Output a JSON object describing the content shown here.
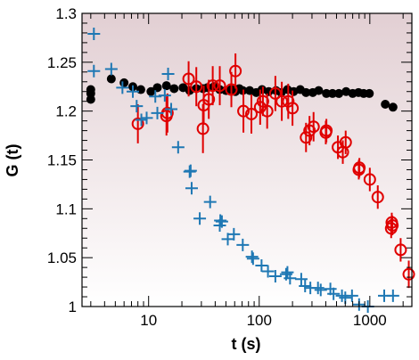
{
  "chart_data": {
    "type": "scatter",
    "title": "",
    "xlabel": "t (s)",
    "ylabel": "G (t)",
    "xscale": "log",
    "xlim": [
      2.5,
      2400
    ],
    "ylim": [
      1.0,
      1.3
    ],
    "xticks": [
      10,
      100,
      1000
    ],
    "xtick_labels": [
      "10",
      "100",
      "1000"
    ],
    "yticks": [
      1,
      1.05,
      1.1,
      1.15,
      1.2,
      1.25,
      1.3
    ],
    "ytick_labels": [
      "1",
      "1.05",
      "1.1",
      "1.15",
      "1.2",
      "1.25",
      "1.3"
    ],
    "grid": false,
    "legend": "none",
    "background": "gradient: white at bottom to pale rose (#e2cfd3) at top",
    "series": [
      {
        "marker": "filled-circle",
        "color": "#000000",
        "points": [
          [
            3.0,
            1.212
          ],
          [
            3.0,
            1.218
          ],
          [
            3.0,
            1.222
          ],
          [
            4.6,
            1.233
          ],
          [
            6.0,
            1.229
          ],
          [
            7.2,
            1.225
          ],
          [
            8.5,
            1.222
          ],
          [
            10.5,
            1.22
          ],
          [
            12.0,
            1.224
          ],
          [
            14.5,
            1.226
          ],
          [
            17.0,
            1.223
          ],
          [
            20.5,
            1.224
          ],
          [
            23.5,
            1.221
          ],
          [
            27.0,
            1.223
          ],
          [
            31.0,
            1.223
          ],
          [
            34.0,
            1.224
          ],
          [
            39.0,
            1.225
          ],
          [
            44.0,
            1.222
          ],
          [
            50.0,
            1.221
          ],
          [
            56.0,
            1.222
          ],
          [
            61.0,
            1.22
          ],
          [
            66.0,
            1.223
          ],
          [
            71.0,
            1.221
          ],
          [
            82.0,
            1.221
          ],
          [
            94.0,
            1.219
          ],
          [
            106.0,
            1.222
          ],
          [
            122.0,
            1.22
          ],
          [
            142.0,
            1.221
          ],
          [
            158.0,
            1.219
          ],
          [
            180.0,
            1.222
          ],
          [
            205.0,
            1.22
          ],
          [
            235.0,
            1.222
          ],
          [
            265.0,
            1.219
          ],
          [
            305.0,
            1.219
          ],
          [
            345.0,
            1.221
          ],
          [
            405.0,
            1.218
          ],
          [
            460.0,
            1.218
          ],
          [
            525.0,
            1.218
          ],
          [
            610.0,
            1.22
          ],
          [
            700.0,
            1.218
          ],
          [
            790.0,
            1.219
          ],
          [
            880.0,
            1.218
          ],
          [
            990.0,
            1.218
          ],
          [
            1380.0,
            1.207
          ],
          [
            1620.0,
            1.204
          ]
        ]
      },
      {
        "marker": "open-circle-errorbar",
        "color": "#e00000",
        "points": [
          [
            8.0,
            1.187,
            0.02
          ],
          [
            14.5,
            1.195,
            0.02
          ],
          [
            14.8,
            1.198,
            0.02
          ],
          [
            23.0,
            1.233,
            0.018
          ],
          [
            27.0,
            1.225,
            0.02
          ],
          [
            31.0,
            1.182,
            0.025
          ],
          [
            31.5,
            1.206,
            0.02
          ],
          [
            35.0,
            1.212,
            0.02
          ],
          [
            38.0,
            1.226,
            0.02
          ],
          [
            44.0,
            1.226,
            0.02
          ],
          [
            56.0,
            1.222,
            0.018
          ],
          [
            61.0,
            1.241,
            0.018
          ],
          [
            72.0,
            1.2,
            0.022
          ],
          [
            85.0,
            1.197,
            0.02
          ],
          [
            102.0,
            1.204,
            0.018
          ],
          [
            108.0,
            1.21,
            0.015
          ],
          [
            118.0,
            1.2,
            0.018
          ],
          [
            140.0,
            1.218,
            0.018
          ],
          [
            160.0,
            1.21,
            0.02
          ],
          [
            183.0,
            1.21,
            0.018
          ],
          [
            200.0,
            1.203,
            0.018
          ],
          [
            265.0,
            1.173,
            0.015
          ],
          [
            285.0,
            1.18,
            0.015
          ],
          [
            310.0,
            1.184,
            0.015
          ],
          [
            400.0,
            1.178,
            0.012
          ],
          [
            405.0,
            1.18,
            0.012
          ],
          [
            515.0,
            1.163,
            0.012
          ],
          [
            570.0,
            1.158,
            0.012
          ],
          [
            605.0,
            1.168,
            0.012
          ],
          [
            795.0,
            1.14,
            0.01
          ],
          [
            805.0,
            1.142,
            0.01
          ],
          [
            1000.0,
            1.13,
            0.012
          ],
          [
            1180.0,
            1.112,
            0.012
          ],
          [
            1560.0,
            1.08,
            0.01
          ],
          [
            1580.0,
            1.086,
            0.01
          ],
          [
            1600.0,
            1.083,
            0.01
          ],
          [
            1900.0,
            1.058,
            0.012
          ],
          [
            2250.0,
            1.033,
            0.014
          ]
        ]
      },
      {
        "marker": "plus",
        "color": "#1f78b4",
        "points": [
          [
            3.2,
            1.279
          ],
          [
            3.2,
            1.241
          ],
          [
            4.6,
            1.243
          ],
          [
            5.8,
            1.224
          ],
          [
            7.2,
            1.22
          ],
          [
            7.8,
            1.205
          ],
          [
            8.6,
            1.191
          ],
          [
            9.6,
            1.193
          ],
          [
            11.5,
            1.215
          ],
          [
            12.0,
            1.198
          ],
          [
            14.0,
            1.216
          ],
          [
            15.0,
            1.238
          ],
          [
            16.0,
            1.202
          ],
          [
            18.5,
            1.163
          ],
          [
            23.5,
            1.138
          ],
          [
            24.0,
            1.139
          ],
          [
            24.5,
            1.121
          ],
          [
            29.0,
            1.09
          ],
          [
            36.0,
            1.107
          ],
          [
            44.0,
            1.083
          ],
          [
            44.5,
            1.088
          ],
          [
            46.0,
            1.087
          ],
          [
            52.0,
            1.069
          ],
          [
            59.0,
            1.074
          ],
          [
            71.0,
            1.063
          ],
          [
            86.0,
            1.051
          ],
          [
            88.0,
            1.049
          ],
          [
            105.0,
            1.042
          ],
          [
            120.0,
            1.036
          ],
          [
            140.0,
            1.031
          ],
          [
            175.0,
            1.033
          ],
          [
            180.0,
            1.035
          ],
          [
            190.0,
            1.029
          ],
          [
            240.0,
            1.028
          ],
          [
            260.0,
            1.021
          ],
          [
            290.0,
            1.019
          ],
          [
            340.0,
            1.019
          ],
          [
            360.0,
            1.017
          ],
          [
            440.0,
            1.018
          ],
          [
            470.0,
            1.013
          ],
          [
            560.0,
            1.011
          ],
          [
            600.0,
            1.009
          ],
          [
            690.0,
            1.011
          ],
          [
            800.0,
            1.002
          ],
          [
            960.0,
            1.0
          ],
          [
            1350.0,
            1.011
          ],
          [
            1620.0,
            1.011
          ]
        ]
      }
    ]
  }
}
